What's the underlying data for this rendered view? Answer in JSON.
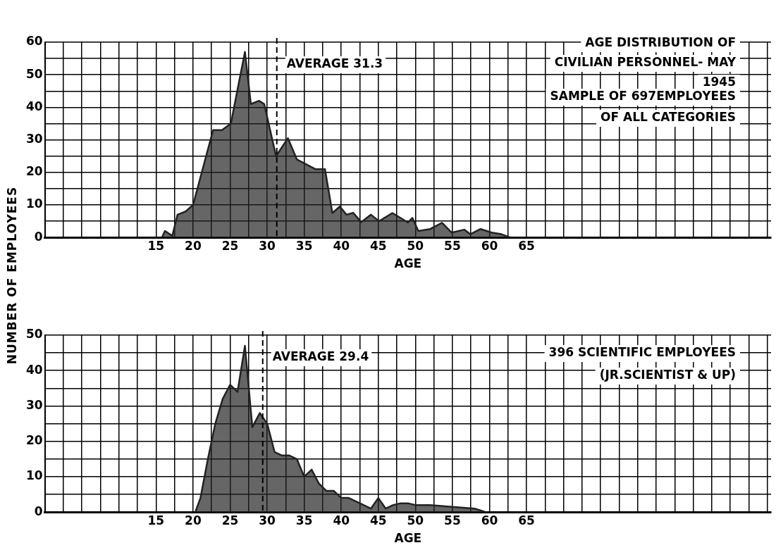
{
  "chart_data": [
    {
      "type": "area",
      "title": "AGE DISTRIBUTION OF CIVILIAN PERSONNEL- MAY 1945",
      "ylabel": "NUMBER OF EMPLOYEES",
      "xlabel": "AGE",
      "annotations": [
        "SAMPLE OF 697EMPLOYEES",
        "OF ALL CATEGORIES"
      ],
      "series": [
        {
          "color": "#222222",
          "x": [
            15.8,
            16.2,
            17.2,
            17.9,
            19,
            20,
            22.7,
            23.9,
            25.1,
            27,
            27.8,
            28.9,
            29.6,
            31.2,
            32.8,
            34,
            36.5,
            37.8,
            38.8,
            39.8,
            40.7,
            41.6,
            42.7,
            44,
            45.1,
            46.9,
            48,
            49,
            49.6,
            50.4,
            52,
            53.6,
            54.9,
            56.6,
            57.4,
            58.8,
            60.3,
            61.6,
            62.8
          ],
          "values": [
            0,
            2,
            0.5,
            7,
            8,
            10,
            33,
            33,
            35,
            57,
            41,
            42,
            41,
            25,
            30.5,
            24,
            21,
            21,
            7.5,
            9.5,
            7,
            7.6,
            4.7,
            7,
            5,
            7.5,
            6,
            4.6,
            6,
            2,
            2.6,
            4.5,
            1.5,
            2.4,
            1,
            2.6,
            1.5,
            1,
            0
          ]
        }
      ],
      "ref_lines": [
        {
          "axis": "x",
          "value": 31.3,
          "label": "AVERAGE 31.3",
          "line_style": "dashed"
        }
      ],
      "xlim": [
        0,
        98
      ],
      "ylim": [
        0,
        60
      ],
      "xticks": [
        {
          "value": 2.5,
          "label": null
        },
        {
          "value": 5,
          "label": null
        },
        {
          "value": 7.5,
          "label": null
        },
        {
          "value": 10,
          "label": null
        },
        {
          "value": 12.5,
          "label": null
        },
        15,
        {
          "value": 17.5,
          "label": null
        },
        20,
        {
          "value": 22.5,
          "label": null
        },
        25,
        {
          "value": 27.5,
          "label": null
        },
        30,
        {
          "value": 32.5,
          "label": null
        },
        35,
        {
          "value": 37.5,
          "label": null
        },
        40,
        {
          "value": 42.5,
          "label": null
        },
        45,
        {
          "value": 47.5,
          "label": null
        },
        50,
        {
          "value": 52.5,
          "label": null
        },
        55,
        {
          "value": 57.5,
          "label": null
        },
        60,
        {
          "value": 62.5,
          "label": null
        },
        65,
        {
          "value": 67.5,
          "label": null
        },
        {
          "value": 70,
          "label": null
        },
        {
          "value": 72.5,
          "label": null
        },
        {
          "value": 75,
          "label": null
        },
        {
          "value": 77.5,
          "label": null
        },
        {
          "value": 80,
          "label": null
        },
        {
          "value": 82.5,
          "label": null
        },
        {
          "value": 85,
          "label": null
        },
        {
          "value": 87.5,
          "label": null
        },
        {
          "value": 90,
          "label": null
        },
        {
          "value": 92.5,
          "label": null
        },
        {
          "value": 95,
          "label": null
        },
        {
          "value": 97.5,
          "label": null
        }
      ],
      "yticks": [
        0,
        {
          "value": 5,
          "label": null
        },
        10,
        {
          "value": 15,
          "label": null
        },
        20,
        {
          "value": 25,
          "label": null
        },
        30,
        {
          "value": 35,
          "label": null
        },
        40,
        {
          "value": 45,
          "label": null
        },
        50,
        {
          "value": 55,
          "label": null
        },
        60
      ],
      "grid": true,
      "legend": false,
      "marker": "none",
      "line_style": "solid"
    },
    {
      "type": "area",
      "xlabel": "AGE",
      "annotations": [
        "396 SCIENTIFIC EMPLOYEES",
        "(JR.SCIENTIST & UP)"
      ],
      "series": [
        {
          "color": "#222222",
          "x": [
            20.3,
            21,
            22,
            23,
            24,
            25,
            26,
            27,
            28,
            29,
            30,
            31,
            32,
            33,
            34,
            35,
            36,
            37,
            38,
            39,
            40,
            41,
            42,
            43,
            44,
            45,
            46,
            47,
            48,
            49,
            50,
            52,
            55,
            58,
            59.5
          ],
          "values": [
            0,
            4,
            15,
            25,
            32,
            36,
            34,
            47,
            24,
            28,
            25,
            17,
            16,
            16,
            15,
            10,
            12,
            8,
            6,
            6,
            4,
            4,
            3,
            2,
            1,
            4,
            1,
            2,
            2.5,
            2.5,
            2,
            2,
            1.5,
            1,
            0
          ]
        }
      ],
      "ref_lines": [
        {
          "axis": "x",
          "value": 29.4,
          "label": "AVERAGE 29.4",
          "line_style": "dashed"
        }
      ],
      "xlim": [
        0,
        98
      ],
      "ylim": [
        0,
        50
      ],
      "xticks": [
        {
          "value": 2.5,
          "label": null
        },
        {
          "value": 5,
          "label": null
        },
        {
          "value": 7.5,
          "label": null
        },
        {
          "value": 10,
          "label": null
        },
        {
          "value": 12.5,
          "label": null
        },
        15,
        {
          "value": 17.5,
          "label": null
        },
        20,
        {
          "value": 22.5,
          "label": null
        },
        25,
        {
          "value": 27.5,
          "label": null
        },
        30,
        {
          "value": 32.5,
          "label": null
        },
        35,
        {
          "value": 37.5,
          "label": null
        },
        40,
        {
          "value": 42.5,
          "label": null
        },
        45,
        {
          "value": 47.5,
          "label": null
        },
        50,
        {
          "value": 52.5,
          "label": null
        },
        55,
        {
          "value": 57.5,
          "label": null
        },
        60,
        {
          "value": 62.5,
          "label": null
        },
        65,
        {
          "value": 67.5,
          "label": null
        },
        {
          "value": 70,
          "label": null
        },
        {
          "value": 72.5,
          "label": null
        },
        {
          "value": 75,
          "label": null
        },
        {
          "value": 77.5,
          "label": null
        },
        {
          "value": 80,
          "label": null
        },
        {
          "value": 82.5,
          "label": null
        },
        {
          "value": 85,
          "label": null
        },
        {
          "value": 87.5,
          "label": null
        },
        {
          "value": 90,
          "label": null
        },
        {
          "value": 92.5,
          "label": null
        },
        {
          "value": 95,
          "label": null
        },
        {
          "value": 97.5,
          "label": null
        }
      ],
      "yticks": [
        0,
        {
          "value": 5,
          "label": null
        },
        10,
        {
          "value": 15,
          "label": null
        },
        20,
        {
          "value": 25,
          "label": null
        },
        30,
        {
          "value": 35,
          "label": null
        },
        40,
        {
          "value": 45,
          "label": null
        },
        50
      ],
      "grid": true,
      "legend": false,
      "marker": "none",
      "line_style": "solid"
    }
  ]
}
